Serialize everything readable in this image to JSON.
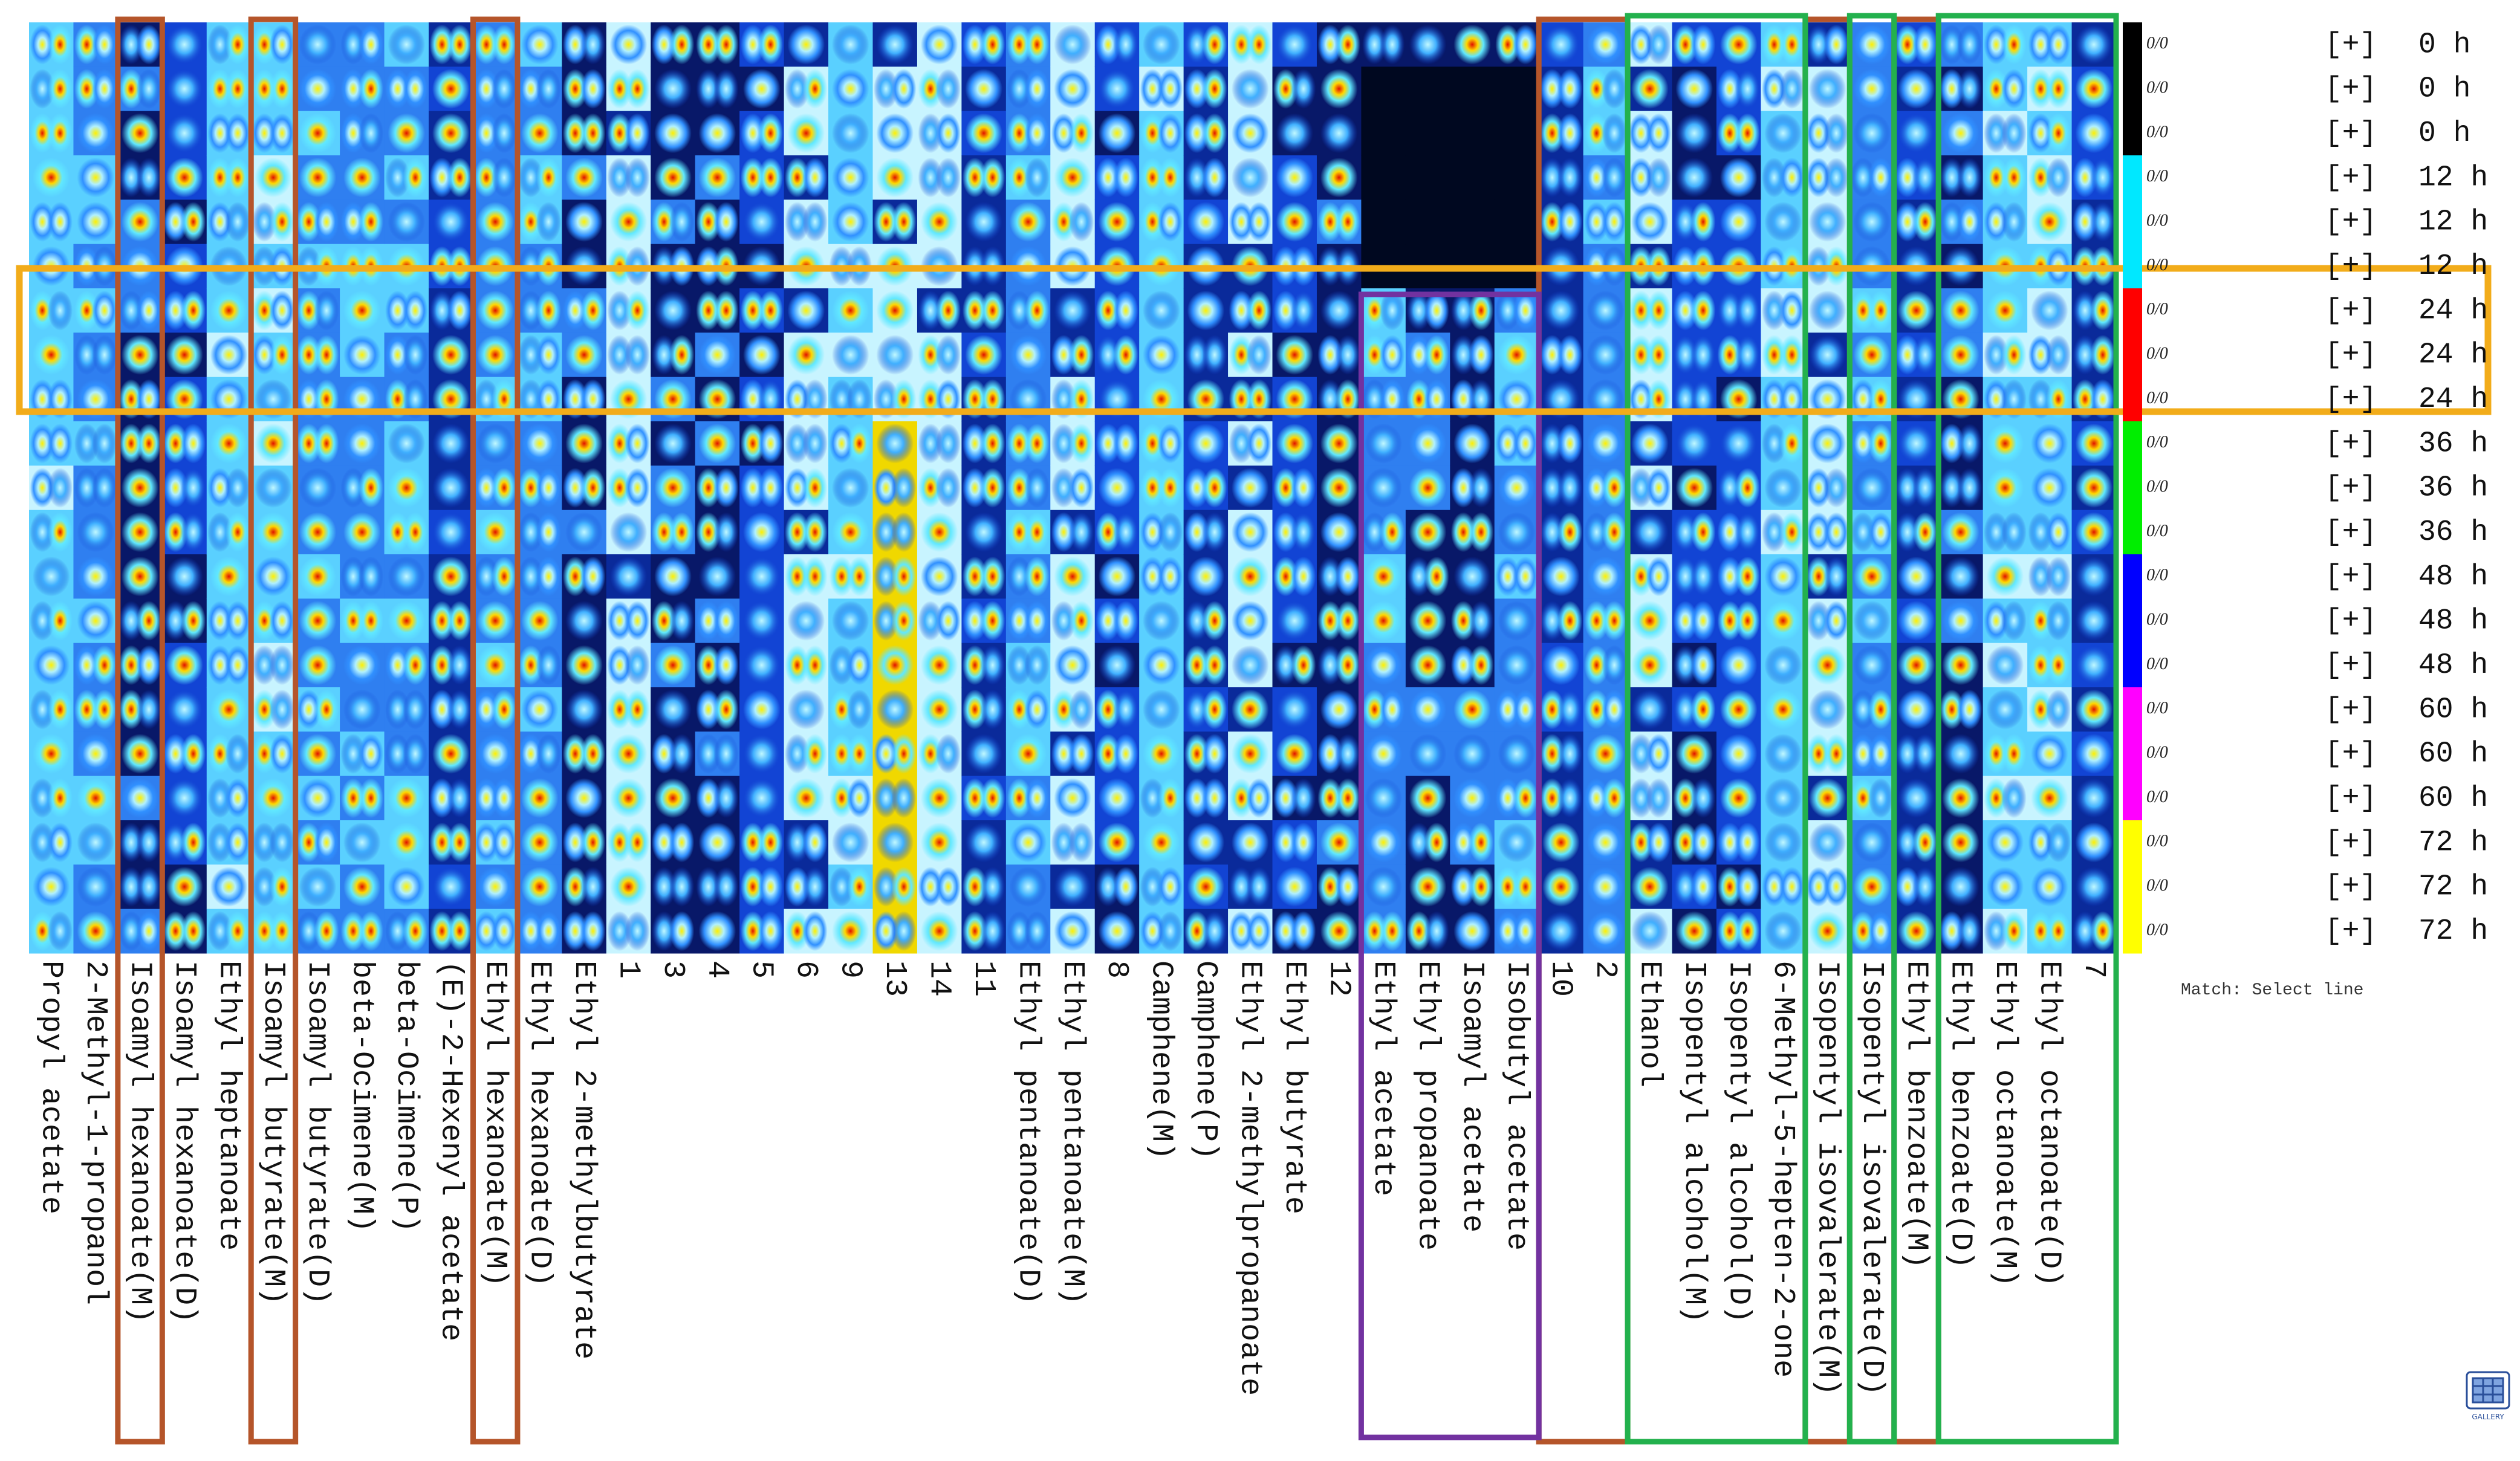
{
  "gallery": {
    "columns": [
      "Propyl acetate",
      "2-Methyl-1-propanol",
      "Isoamyl hexanoate(M)",
      "Isoamyl hexanoate(D)",
      "Ethyl heptanoate",
      "Isoamyl butyrate(M)",
      "Isoamyl butyrate(D)",
      "beta-Ocimene(M)",
      "beta-Ocimene(P)",
      "(E)-2-Hexenyl acetate",
      "Ethyl hexanoate(M)",
      "Ethyl hexanoate(D)",
      "Ethyl 2-methylbutyrate",
      "1",
      "3",
      "4",
      "5",
      "6",
      "9",
      "13",
      "14",
      "11",
      "Ethyl pentanoate(D)",
      "Ethyl pentanoate(M)",
      "8",
      "Camphene(M)",
      "Camphene(P)",
      "Ethyl 2-methylpropanoate",
      "Ethyl butyrate",
      "12",
      "Ethyl acetate",
      "Ethyl propanoate",
      "Isoamyl acetate",
      "Isobutyl acetate",
      "10",
      "2",
      "Ethanol",
      "Isopentyl alcohol(M)",
      "Isopentyl alcohol(D)",
      "6-Methyl-5-hepten-2-one",
      "Isopentyl isovalerate(M)",
      "Isopentyl isovalerate(D)",
      "Ethyl benzoate(M)",
      "Ethyl benzoate(D)",
      "Ethyl octanoate(M)",
      "Ethyl octanoate(D)",
      "7"
    ],
    "rows": [
      {
        "count": "0/0",
        "toggle": "[+]",
        "group": "0 h"
      },
      {
        "count": "0/0",
        "toggle": "[+]",
        "group": "0 h"
      },
      {
        "count": "0/0",
        "toggle": "[+]",
        "group": "0 h"
      },
      {
        "count": "0/0",
        "toggle": "[+]",
        "group": "12 h"
      },
      {
        "count": "0/0",
        "toggle": "[+]",
        "group": "12 h"
      },
      {
        "count": "0/0",
        "toggle": "[+]",
        "group": "12 h"
      },
      {
        "count": "0/0",
        "toggle": "[+]",
        "group": "24 h"
      },
      {
        "count": "0/0",
        "toggle": "[+]",
        "group": "24 h"
      },
      {
        "count": "0/0",
        "toggle": "[+]",
        "group": "24 h"
      },
      {
        "count": "0/0",
        "toggle": "[+]",
        "group": "36 h"
      },
      {
        "count": "0/0",
        "toggle": "[+]",
        "group": "36 h"
      },
      {
        "count": "0/0",
        "toggle": "[+]",
        "group": "36 h"
      },
      {
        "count": "0/0",
        "toggle": "[+]",
        "group": "48 h"
      },
      {
        "count": "0/0",
        "toggle": "[+]",
        "group": "48 h"
      },
      {
        "count": "0/0",
        "toggle": "[+]",
        "group": "48 h"
      },
      {
        "count": "0/0",
        "toggle": "[+]",
        "group": "60 h"
      },
      {
        "count": "0/0",
        "toggle": "[+]",
        "group": "60 h"
      },
      {
        "count": "0/0",
        "toggle": "[+]",
        "group": "60 h"
      },
      {
        "count": "0/0",
        "toggle": "[+]",
        "group": "72 h"
      },
      {
        "count": "0/0",
        "toggle": "[+]",
        "group": "72 h"
      },
      {
        "count": "0/0",
        "toggle": "[+]",
        "group": "72 h"
      }
    ]
  },
  "match_label": "Match: Select line",
  "gallery_button": "GALLERY"
}
